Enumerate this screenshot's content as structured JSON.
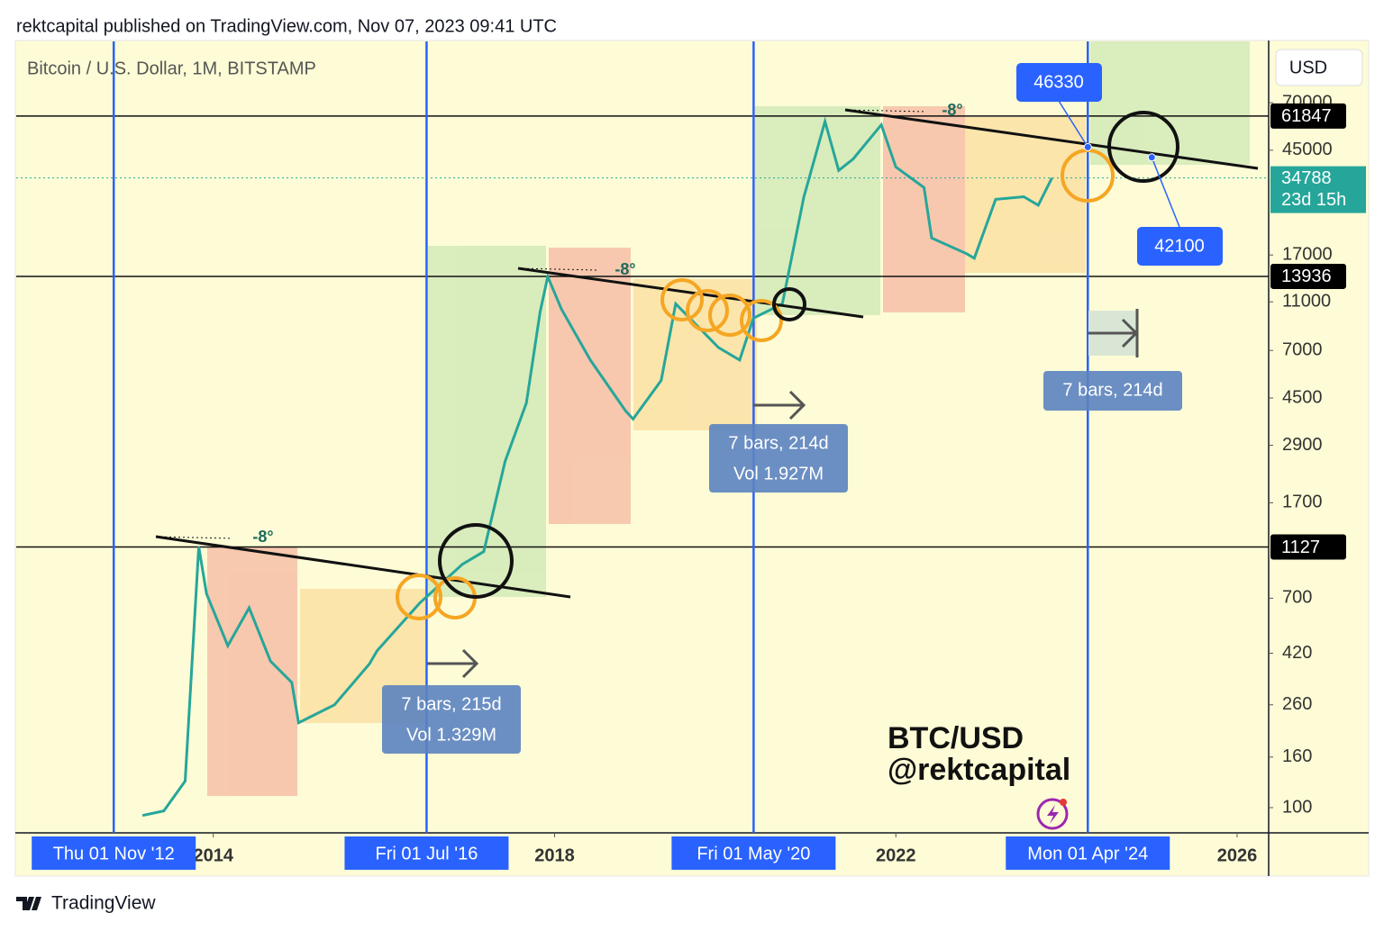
{
  "header": "rektcapital published on TradingView.com, Nov 07, 2023 09:41 UTC",
  "footer": "TradingView",
  "chart_data": {
    "type": "line",
    "title": "Bitcoin / U.S. Dollar, 1M, BITSTAMP",
    "currency": "USD",
    "color": "#26a69a",
    "log_scale": true,
    "x": [
      2013.17,
      2013.42,
      2013.67,
      2013.83,
      2013.92,
      2014.17,
      2014.42,
      2014.67,
      2014.92,
      2015.0,
      2015.42,
      2015.83,
      2015.92,
      2016.42,
      2016.92,
      2017.17,
      2017.42,
      2017.67,
      2017.83,
      2017.92,
      2018.08,
      2018.42,
      2018.83,
      2018.92,
      2019.25,
      2019.42,
      2019.92,
      2020.17,
      2020.33,
      2020.67,
      2020.92,
      2021.17,
      2021.33,
      2021.5,
      2021.83,
      2022.0,
      2022.33,
      2022.42,
      2022.83,
      2022.92,
      2023.17,
      2023.5,
      2023.67,
      2023.83
    ],
    "values": [
      93,
      97,
      128,
      1130,
      730,
      450,
      640,
      390,
      320,
      220,
      260,
      380,
      430,
      670,
      960,
      1080,
      2500,
      4300,
      10000,
      13900,
      10300,
      6400,
      4000,
      3700,
      5300,
      10800,
      7200,
      6400,
      9450,
      10800,
      29000,
      58800,
      37300,
      41500,
      57000,
      38500,
      31800,
      19900,
      17200,
      16500,
      28500,
      29200,
      27000,
      34788
    ],
    "xlim": [
      2011.69,
      2026.37
    ],
    "xticks": [
      2014,
      2018,
      2022,
      2026
    ],
    "ylim": [
      79.1,
      123700
    ],
    "yticks": [
      100,
      160,
      260,
      420,
      700,
      1700,
      2900,
      4500,
      7000,
      11000,
      17000,
      45000,
      70000
    ],
    "levels": [
      61847,
      13936,
      1127
    ],
    "last_price": {
      "value": 34788,
      "countdown": "23d 15h"
    },
    "date_markers": [
      {
        "value": 2012.833,
        "label": "Thu 01 Nov '12"
      },
      {
        "value": 2016.5,
        "label": "Fri 01 Jul '16"
      },
      {
        "value": 2020.333,
        "label": "Fri 01 May '20"
      },
      {
        "value": 2024.25,
        "label": "Mon 01 Apr '24"
      }
    ],
    "callouts": [
      {
        "x": 2024.25,
        "value": 46330
      },
      {
        "x": 2025.0,
        "value": 42100
      }
    ],
    "angle_labels": [
      "-8°",
      "-8°",
      "-8°"
    ],
    "measures": [
      {
        "bars": "7 bars, 215d",
        "volume": "Vol 1.329M"
      },
      {
        "bars": "7 bars, 214d",
        "volume": "Vol 1.927M"
      },
      {
        "bars": "7 bars, 214d"
      }
    ],
    "watermark": [
      "BTC/USD",
      "@rektcapital"
    ]
  }
}
